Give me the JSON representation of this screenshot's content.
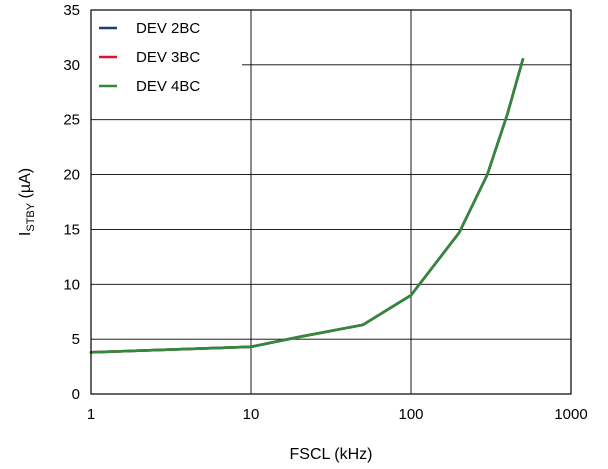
{
  "chart_data": {
    "type": "line",
    "xscale": "log",
    "xlim": [
      1,
      1000
    ],
    "ylim": [
      0,
      35
    ],
    "xticks": [
      1,
      10,
      100,
      1000
    ],
    "xtick_labels": [
      "1",
      "10",
      "100",
      "1000"
    ],
    "yticks": [
      0,
      5,
      10,
      15,
      20,
      25,
      30,
      35
    ],
    "ytick_labels": [
      "0",
      "5",
      "10",
      "15",
      "20",
      "25",
      "30",
      "35"
    ],
    "xlabel": "FSCL (kHz)",
    "ylabel": {
      "prefix": "I",
      "subscript": "STBY",
      "suffix": " (µA)"
    },
    "grid": true,
    "legend_position": "top-left",
    "series": [
      {
        "name": "DEV 2BC",
        "color": "#1f3d7a",
        "x": [
          1,
          10,
          20,
          50,
          100,
          200,
          300,
          400,
          500
        ],
        "y": [
          3.8,
          4.3,
          5.2,
          6.3,
          9.0,
          14.7,
          20.0,
          25.5,
          30.5
        ]
      },
      {
        "name": "DEV 3BC",
        "color": "#e0102f",
        "x": [
          1,
          10,
          20,
          50,
          100,
          200,
          300,
          400,
          500
        ],
        "y": [
          3.8,
          4.3,
          5.2,
          6.3,
          9.0,
          14.7,
          20.0,
          25.5,
          30.5
        ]
      },
      {
        "name": "DEV 4BC",
        "color": "#2e8b3e",
        "x": [
          1,
          10,
          20,
          50,
          100,
          200,
          300,
          400,
          500
        ],
        "y": [
          3.8,
          4.3,
          5.2,
          6.3,
          9.0,
          14.7,
          20.0,
          25.5,
          30.5
        ]
      }
    ]
  }
}
